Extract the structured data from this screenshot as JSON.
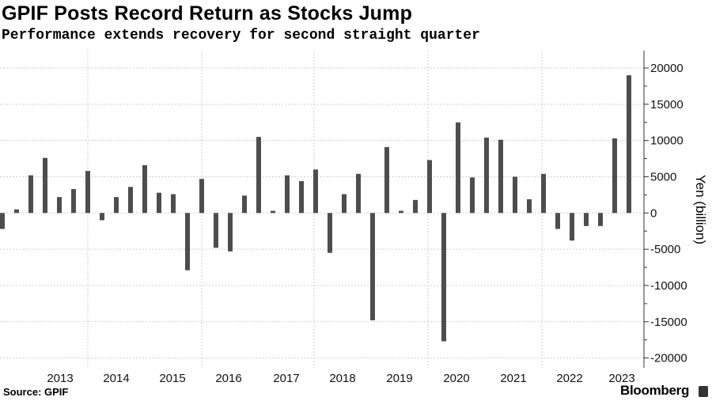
{
  "chart_data": {
    "type": "bar",
    "title": "GPIF Posts Record Return as Stocks Jump",
    "subtitle": "Performance extends recovery for second straight quarter",
    "ylabel": "Yen (billion)",
    "xlabel": "",
    "ylim": [
      -20000,
      22000
    ],
    "yticks": [
      20000,
      15000,
      10000,
      5000,
      0,
      -5000,
      -10000,
      -15000,
      -20000
    ],
    "ytick_labels": [
      "20000",
      "15000",
      "10000",
      "5000",
      "0",
      "-5000",
      "-10000",
      "-15000",
      "-20000"
    ],
    "xtick_labels": [
      "2013",
      "2014",
      "2015",
      "2016",
      "2017",
      "2018",
      "2019",
      "2020",
      "2021",
      "2022",
      "2023"
    ],
    "grid": true,
    "bar_color": "#4d4d4d",
    "values": [
      -2200,
      500,
      5200,
      7600,
      2200,
      3300,
      5800,
      -1000,
      2200,
      3600,
      6600,
      2800,
      2600,
      -7900,
      4700,
      -4800,
      -5300,
      2400,
      10500,
      300,
      5200,
      4400,
      6000,
      -5500,
      2600,
      5400,
      -14800,
      9100,
      300,
      1800,
      7300,
      -17700,
      12500,
      4900,
      10400,
      10100,
      5000,
      1900,
      5400,
      -2200,
      -3800,
      -1800,
      -1800,
      10300,
      19000
    ]
  },
  "footer": {
    "source": "Source: GPIF",
    "brand": "Bloomberg"
  }
}
